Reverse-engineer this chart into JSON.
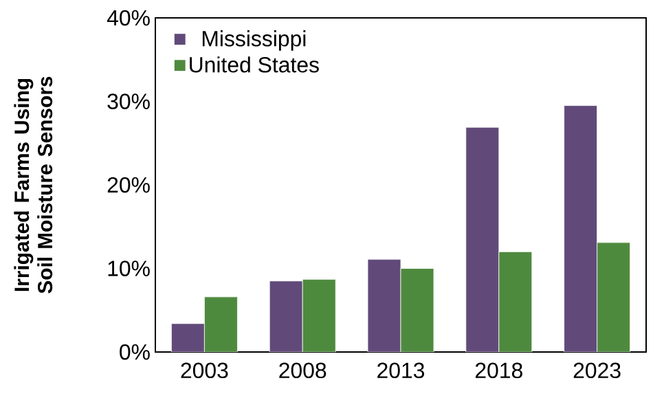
{
  "chart_data": {
    "type": "bar",
    "ylabel": "Irrigated Farms Using Soil Moisture Sensors",
    "categories": [
      "2003",
      "2008",
      "2013",
      "2018",
      "2023"
    ],
    "series": [
      {
        "name": "Mississippi",
        "color": "#614a7a",
        "values": [
          3.4,
          8.5,
          11.1,
          26.9,
          29.5
        ]
      },
      {
        "name": "United States",
        "color": "#4e8a3e",
        "values": [
          6.6,
          8.7,
          10.0,
          12.0,
          13.1
        ]
      }
    ],
    "ylim": [
      0,
      40
    ],
    "yticks": [
      {
        "value": 0,
        "label": "0%"
      },
      {
        "value": 10,
        "label": "10%"
      },
      {
        "value": 20,
        "label": "20%"
      },
      {
        "value": 30,
        "label": "30%"
      },
      {
        "value": 40,
        "label": "40%"
      }
    ],
    "grid": false,
    "legend": "top left"
  }
}
